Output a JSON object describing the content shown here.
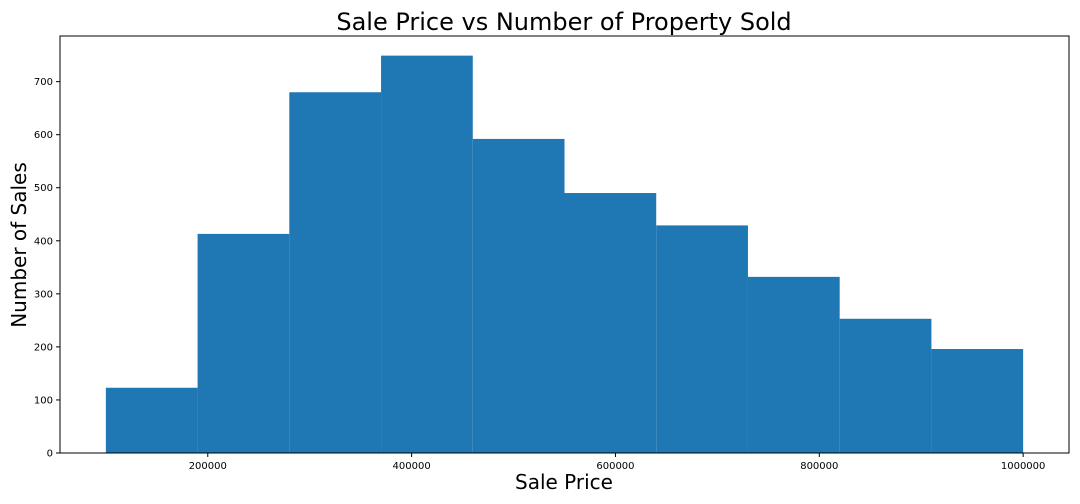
{
  "chart_data": {
    "type": "bar",
    "title": "Sale Price vs Number of Property Sold",
    "xlabel": "Sale Price",
    "ylabel": "Number of Sales",
    "bin_edges": [
      100000,
      190000,
      280000,
      370000,
      460000,
      550000,
      640000,
      730000,
      820000,
      910000,
      1000000
    ],
    "values": [
      123,
      413,
      680,
      749,
      592,
      490,
      429,
      332,
      253,
      196
    ],
    "xlim": [
      55000,
      1045000
    ],
    "ylim": [
      0,
      786
    ],
    "xticks": [
      200000,
      400000,
      600000,
      800000,
      1000000
    ],
    "xtick_labels": [
      "200000",
      "400000",
      "600000",
      "800000",
      "1000000"
    ],
    "yticks": [
      0,
      100,
      200,
      300,
      400,
      500,
      600,
      700
    ],
    "ytick_labels": [
      "0",
      "100",
      "200",
      "300",
      "400",
      "500",
      "600",
      "700"
    ],
    "bar_color": "#1f77b4",
    "grid": false,
    "legend": "none"
  }
}
